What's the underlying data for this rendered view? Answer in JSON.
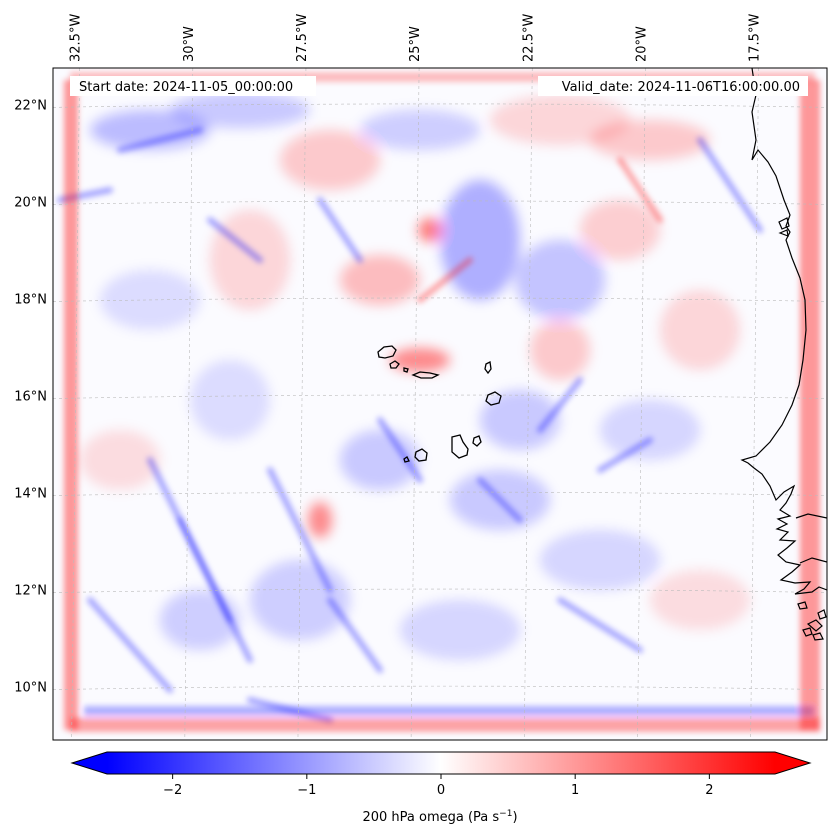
{
  "map": {
    "extent": {
      "lon_min": -33.0,
      "lon_max": -15.9,
      "lat_min": 8.9,
      "lat_max": 22.75
    },
    "start_date": "Start date: 2024-11-05_00:00:00",
    "valid_date": "Valid_date: 2024-11-06T16:00:00.00",
    "lon_labels": [
      {
        "lon": -32.5,
        "text": "32.5°W"
      },
      {
        "lon": -30.0,
        "text": "30°W"
      },
      {
        "lon": -27.5,
        "text": "27.5°W"
      },
      {
        "lon": -25.0,
        "text": "25°W"
      },
      {
        "lon": -22.5,
        "text": "22.5°W"
      },
      {
        "lon": -20.0,
        "text": "20°W"
      },
      {
        "lon": -17.5,
        "text": "17.5°W"
      }
    ],
    "lat_labels": [
      {
        "lat": 10,
        "text": "10°N"
      },
      {
        "lat": 12,
        "text": "12°N"
      },
      {
        "lat": 14,
        "text": "14°N"
      },
      {
        "lat": 16,
        "text": "16°N"
      },
      {
        "lat": 18,
        "text": "18°N"
      },
      {
        "lat": 20,
        "text": "20°N"
      },
      {
        "lat": 22,
        "text": "22°N"
      }
    ],
    "gridlines": true,
    "field_colors": {
      "negative": "#0000ff",
      "zero": "#ffffff",
      "positive": "#ff0000"
    },
    "coastline_color": "#000000",
    "islands": [
      {
        "name": "Santo Antao"
      },
      {
        "name": "Sao Vicente"
      },
      {
        "name": "Sao Nicolau"
      },
      {
        "name": "Sal"
      },
      {
        "name": "Boa Vista"
      },
      {
        "name": "Maio"
      },
      {
        "name": "Santiago"
      },
      {
        "name": "Fogo"
      },
      {
        "name": "Brava"
      }
    ]
  },
  "colorbar": {
    "vmin": -2.75,
    "vmax": 2.75,
    "ticks": [
      {
        "value": -2,
        "text": "−2"
      },
      {
        "value": -1,
        "text": "−1"
      },
      {
        "value": 0,
        "text": "0"
      },
      {
        "value": 1,
        "text": "1"
      },
      {
        "value": 2,
        "text": "2"
      }
    ],
    "label": "200 hPa omega (Pa s",
    "label_sup": "−1",
    "label_end": ")",
    "extend": "both",
    "colormap": "bwr"
  }
}
